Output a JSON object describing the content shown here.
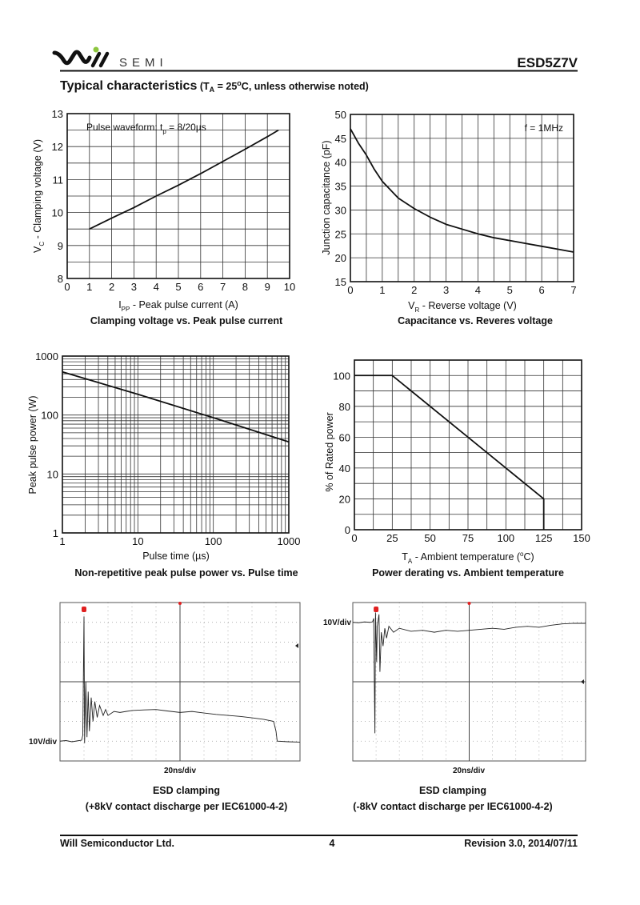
{
  "header": {
    "logo_text": "SEMI",
    "part_number": "ESD5Z7V",
    "section_title": "Typical characteristics",
    "condition": {
      "prefix": " (T",
      "sub": "A",
      "mid": " = 25",
      "sup": "o",
      "suffix": "C, unless otherwise noted)"
    },
    "logo_dot_color": "#8dc63f"
  },
  "footer": {
    "company": "Will Semiconductor Ltd.",
    "page": "4",
    "revision": "Revision 3.0, 2014/07/11"
  },
  "chart_data": [
    {
      "id": "clamping",
      "type": "line",
      "title": "Clamping voltage vs. Peak pulse current",
      "xlabel": {
        "main": "I",
        "sub": "PP",
        "rest": " - Peak pulse current (A)"
      },
      "ylabel": {
        "main": "V",
        "sub": "C",
        "rest": " - Clamping voltage (V)"
      },
      "annotation": {
        "main": "Pulse waveform: t",
        "sub": "p",
        "rest": " = 8/20µs"
      },
      "xlim": [
        0,
        10
      ],
      "ylim": [
        8,
        13
      ],
      "xticks": [
        0,
        1,
        2,
        3,
        4,
        5,
        6,
        7,
        8,
        9,
        10
      ],
      "yticks": [
        8,
        9,
        10,
        11,
        12,
        13
      ],
      "grid": true,
      "grid_step": {
        "x": 1,
        "y": 0.5
      },
      "series": [
        {
          "x": [
            1,
            2,
            3,
            4,
            5,
            6,
            7,
            8,
            9,
            9.5
          ],
          "y": [
            9.5,
            9.83,
            10.15,
            10.5,
            10.83,
            11.18,
            11.55,
            11.92,
            12.3,
            12.5
          ]
        }
      ]
    },
    {
      "id": "capacitance",
      "type": "line",
      "title": "Capacitance vs. Reveres voltage",
      "xlabel": {
        "main": "V",
        "sub": "R",
        "rest": " - Reverse voltage (V)"
      },
      "ylabel": {
        "main": "Junction capacitance (pF)",
        "sub": "",
        "rest": ""
      },
      "annotation": {
        "main": "f = 1MHz",
        "sub": "",
        "rest": ""
      },
      "xlim": [
        0,
        7
      ],
      "ylim": [
        15,
        50
      ],
      "xticks": [
        0,
        1,
        2,
        3,
        4,
        5,
        6,
        7
      ],
      "yticks": [
        15,
        20,
        25,
        30,
        35,
        40,
        45,
        50
      ],
      "grid": true,
      "grid_step": {
        "x": 0.5,
        "y": 5
      },
      "series": [
        {
          "x": [
            0,
            0.25,
            0.5,
            0.75,
            1,
            1.5,
            2,
            2.5,
            3,
            3.5,
            4,
            4.5,
            5,
            5.5,
            6,
            6.5,
            7
          ],
          "y": [
            47,
            44,
            41.5,
            38.5,
            36,
            32.5,
            30.3,
            28.5,
            27,
            26,
            25,
            24.2,
            23.6,
            23,
            22.4,
            21.8,
            21.2
          ]
        }
      ]
    },
    {
      "id": "pulse-power",
      "type": "line",
      "title": "Non-repetitive peak pulse power vs. Pulse time",
      "xlabel": {
        "main": "Pulse time (µs)",
        "sub": "",
        "rest": ""
      },
      "ylabel": {
        "main": "Peak pulse power (W)",
        "sub": "",
        "rest": ""
      },
      "xscale": "log",
      "yscale": "log",
      "xlim": [
        1,
        1000
      ],
      "ylim": [
        1,
        1000
      ],
      "xticks": [
        1,
        10,
        100,
        1000
      ],
      "yticks": [
        1,
        10,
        100,
        1000
      ],
      "grid": true,
      "series": [
        {
          "x": [
            1,
            10,
            100,
            1000
          ],
          "y": [
            540,
            225,
            90,
            35
          ]
        }
      ]
    },
    {
      "id": "derating",
      "type": "line",
      "title": "Power derating vs. Ambient temperature",
      "xlabel": {
        "main": "T",
        "sub": "A",
        "rest": " - Ambient temperature (",
        "sup": "o",
        "end": "C)"
      },
      "ylabel": {
        "main": "% of Rated power",
        "sub": "",
        "rest": ""
      },
      "xlim": [
        0,
        150
      ],
      "ylim": [
        0,
        110
      ],
      "xticks": [
        0,
        25,
        50,
        75,
        100,
        125,
        150
      ],
      "yticks": [
        0,
        20,
        40,
        60,
        80,
        100
      ],
      "grid": true,
      "grid_step": {
        "x": 12.5,
        "y": 10
      },
      "series": [
        {
          "x": [
            0,
            25,
            125,
            125
          ],
          "y": [
            100,
            100,
            20,
            0
          ]
        }
      ]
    },
    {
      "id": "esd-positive",
      "type": "line",
      "title": "ESD clamping",
      "subtitle": "(+8kV contact discharge per IEC61000-4-2)",
      "xlabel": "20ns/div",
      "ylabel": "10V/div",
      "xlim": [
        0,
        200
      ],
      "ylim": [
        -10,
        70
      ],
      "grid": true,
      "grid_step": {
        "x": 20,
        "y": 10
      },
      "trace_color": "#222222",
      "marker_color": "#e02020",
      "series": [
        {
          "x": [
            0,
            5,
            10,
            15,
            18,
            19,
            20,
            20.5,
            21.5,
            22.5,
            23.5,
            24.5,
            26,
            27.5,
            29,
            31,
            33,
            36,
            38,
            40,
            45,
            50,
            55,
            60,
            70,
            80,
            90,
            100,
            110,
            120,
            130,
            140,
            150,
            160,
            170,
            178,
            180,
            181,
            190,
            200
          ],
          "y": [
            0,
            0.3,
            -0.3,
            0.2,
            0.5,
            3,
            63,
            -1,
            30,
            2,
            25,
            5,
            22,
            10,
            20,
            12,
            18,
            13,
            16,
            13,
            15,
            14.5,
            15,
            15.5,
            15.8,
            16,
            15.2,
            14.5,
            15,
            14.2,
            13.5,
            13,
            12.5,
            11.8,
            11,
            10,
            5,
            0,
            -0.3,
            -0.5
          ]
        }
      ]
    },
    {
      "id": "esd-negative",
      "type": "line",
      "title": "ESD clamping",
      "subtitle": "(-8kV contact discharge per IEC61000-4-2)",
      "xlabel": "20ns/div",
      "ylabel": "10V/div",
      "xlim": [
        0,
        200
      ],
      "ylim": [
        -70,
        10
      ],
      "grid": true,
      "grid_step": {
        "x": 20,
        "y": 10
      },
      "trace_color": "#222222",
      "marker_color": "#e02020",
      "series": [
        {
          "x": [
            0,
            5,
            10,
            15,
            17,
            18,
            18.5,
            19,
            19.5,
            20.5,
            21,
            22.5,
            23.3,
            24.5,
            26,
            27.5,
            29,
            31,
            35,
            40,
            50,
            60,
            70,
            80,
            90,
            100,
            110,
            120,
            130,
            140,
            150,
            160,
            170,
            180,
            190,
            200
          ],
          "y": [
            0,
            -0.2,
            0.2,
            0,
            0.3,
            2,
            -30,
            -56,
            5,
            -20,
            -2,
            4,
            -25,
            -5,
            -12,
            -3,
            -8,
            -2,
            -5,
            -3,
            -4.5,
            -4,
            -5,
            -4,
            -4.5,
            -4,
            -3.5,
            -3,
            -3.5,
            -2.5,
            -2,
            -2.5,
            -1.5,
            -0.8,
            -0.5,
            -0.5
          ]
        }
      ]
    }
  ]
}
